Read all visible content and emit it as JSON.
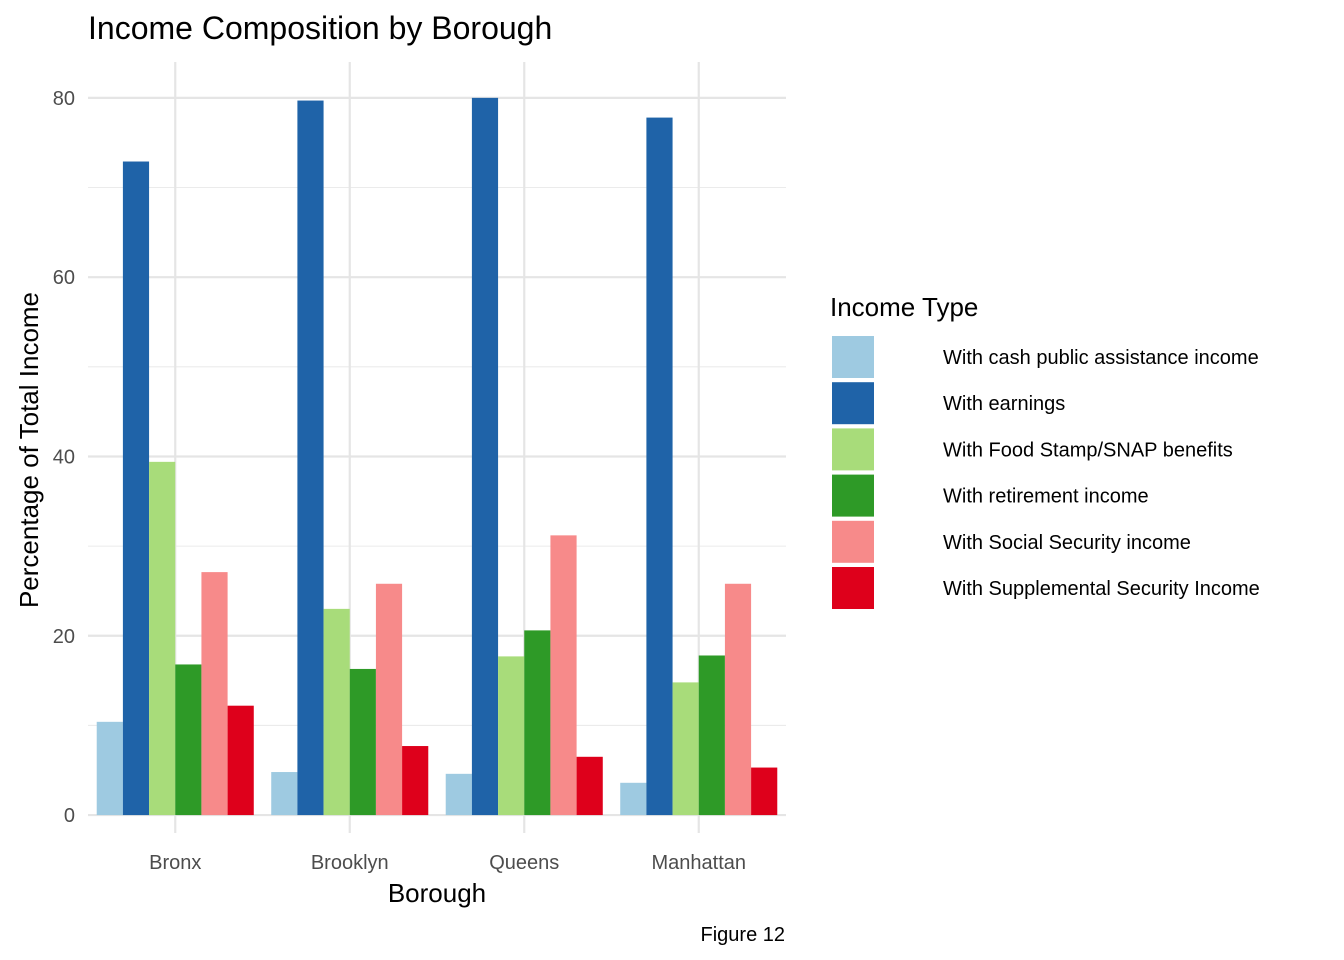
{
  "chart_data": {
    "type": "bar",
    "title": "Income Composition by Borough",
    "xlabel": "Borough",
    "ylabel": "Percentage of Total Income",
    "caption": "Figure 12",
    "categories": [
      "Bronx",
      "Brooklyn",
      "Queens",
      "Manhattan"
    ],
    "ylim": [
      -2,
      84
    ],
    "yticks": [
      0,
      20,
      40,
      60,
      80
    ],
    "grid": true,
    "legend": {
      "title": "Income Type",
      "placement": "right"
    },
    "series": [
      {
        "name": "With cash public assistance income",
        "color": "#9ecae1",
        "values": [
          10.4,
          4.8,
          4.6,
          3.6
        ]
      },
      {
        "name": "With earnings",
        "color": "#1f63a8",
        "values": [
          72.9,
          79.7,
          80.0,
          77.8
        ]
      },
      {
        "name": "With Food Stamp/SNAP benefits",
        "color": "#a8dc7a",
        "values": [
          39.4,
          23.0,
          17.7,
          14.8
        ]
      },
      {
        "name": "With retirement income",
        "color": "#2e9a27",
        "values": [
          16.8,
          16.3,
          20.6,
          17.8
        ]
      },
      {
        "name": "With Social Security income",
        "color": "#f78a8a",
        "values": [
          27.1,
          25.8,
          31.2,
          25.8
        ]
      },
      {
        "name": "With Supplemental Security Income",
        "color": "#de001b",
        "values": [
          12.2,
          7.7,
          6.5,
          5.3
        ]
      }
    ]
  }
}
